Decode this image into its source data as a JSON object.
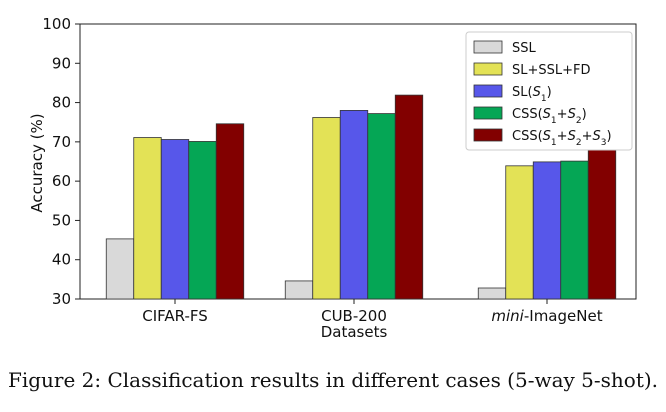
{
  "chart_data": {
    "type": "bar",
    "title": "",
    "xlabel": "Datasets",
    "ylabel": "Accuracy (%)",
    "ylim": [
      30,
      100
    ],
    "yticks": [
      30,
      40,
      50,
      60,
      70,
      80,
      90,
      100
    ],
    "categories": [
      {
        "prefix": "",
        "italic": "",
        "suffix": "CIFAR-FS"
      },
      {
        "prefix": "",
        "italic": "",
        "suffix": "CUB-200"
      },
      {
        "prefix": "",
        "italic": "mini",
        "suffix": "-ImageNet"
      }
    ],
    "series": [
      {
        "name": "SSL",
        "legend": [
          {
            "t": "SSL"
          }
        ],
        "color": "#d9d9d9",
        "values": [
          45.3,
          34.6,
          32.8
        ]
      },
      {
        "name": "SL+SSL+FD",
        "legend": [
          {
            "t": "SL+SSL+FD"
          }
        ],
        "color": "#e3e256",
        "values": [
          71.1,
          76.2,
          63.9
        ]
      },
      {
        "name": "SL(S1)",
        "legend": [
          {
            "t": "SL("
          },
          {
            "t": "S",
            "i": true
          },
          {
            "t": "1",
            "sub": true
          },
          {
            "t": ")"
          }
        ],
        "color": "#5757ea",
        "values": [
          70.6,
          78.0,
          64.9
        ]
      },
      {
        "name": "CSS(S1+S2)",
        "legend": [
          {
            "t": "CSS("
          },
          {
            "t": "S",
            "i": true
          },
          {
            "t": "1",
            "sub": true
          },
          {
            "t": "+"
          },
          {
            "t": "S",
            "i": true
          },
          {
            "t": "2",
            "sub": true
          },
          {
            "t": ")"
          }
        ],
        "color": "#05a655",
        "values": [
          70.1,
          77.2,
          65.1
        ]
      },
      {
        "name": "CSS(S1+S2+S3)",
        "legend": [
          {
            "t": "CSS("
          },
          {
            "t": "S",
            "i": true
          },
          {
            "t": "1",
            "sub": true
          },
          {
            "t": "+"
          },
          {
            "t": "S",
            "i": true
          },
          {
            "t": "2",
            "sub": true
          },
          {
            "t": "+"
          },
          {
            "t": "S",
            "i": true
          },
          {
            "t": "3",
            "sub": true
          },
          {
            "t": ")"
          }
        ],
        "color": "#820000",
        "values": [
          74.6,
          81.9,
          68.0
        ]
      }
    ],
    "legend_position": "top-right"
  },
  "caption": "Figure 2: Classification results in different cases (5-way 5-shot)."
}
